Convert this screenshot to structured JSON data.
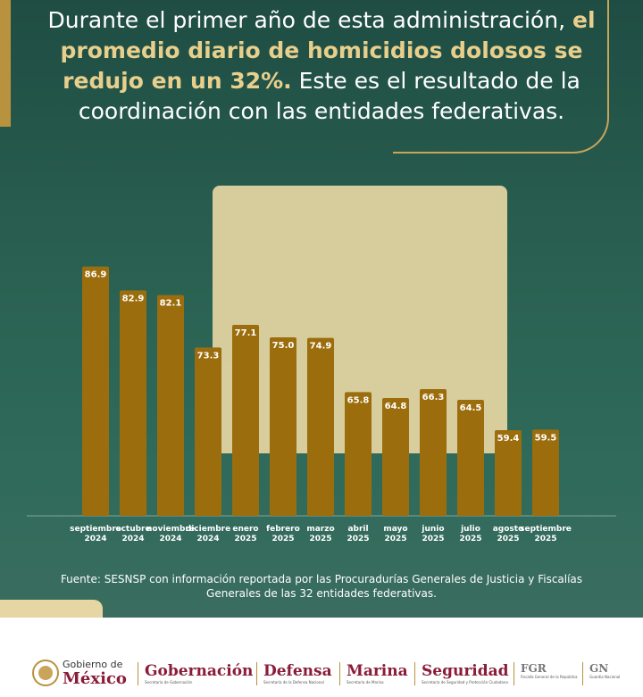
{
  "title": {
    "part1": "Durante el primer año de esta administración,",
    "highlight": "el promedio diario de homicidios dolosos se redujo en un 32%.",
    "part2": "Este es el resultado de la coordinación con las entidades federativas."
  },
  "chart_data": {
    "type": "bar",
    "categories": [
      "septiembre\n2024",
      "octubre\n2024",
      "noviembre\n2024",
      "diciembre\n2024",
      "enero\n2025",
      "febrero\n2025",
      "marzo\n2025",
      "abril\n2025",
      "mayo\n2025",
      "junio\n2025",
      "julio\n2025",
      "agosto\n2025",
      "septiembre\n2025"
    ],
    "values": [
      86.9,
      82.9,
      82.1,
      73.3,
      77.1,
      75.0,
      74.9,
      65.8,
      64.8,
      66.3,
      64.5,
      59.4,
      59.5
    ],
    "value_labels": [
      "86.9",
      "82.9",
      "82.1",
      "73.3",
      "77.1",
      "75.0",
      "74.9",
      "65.8",
      "64.8",
      "66.3",
      "64.5",
      "59.4",
      "59.5"
    ],
    "color": "#9c6d0c",
    "ylim": [
      45,
      90
    ]
  },
  "source": "Fuente: SESNSP con información reportada por las Procuradurías Generales de Justicia y Fiscalías Generales de las 32 entidades federativas.",
  "footer": {
    "gobierno": "Gobierno de",
    "mexico": "México",
    "agencies": [
      {
        "name": "Gobernación",
        "subtitle": "Secretaría de Gobernación"
      },
      {
        "name": "Defensa",
        "subtitle": "Secretaría de la Defensa Nacional"
      },
      {
        "name": "Marina",
        "subtitle": "Secretaría de Marina"
      },
      {
        "name": "Seguridad",
        "subtitle": "Secretaría de Seguridad y Protección Ciudadana"
      },
      {
        "name": "FGR",
        "subtitle": "Fiscalía General de la República"
      },
      {
        "name": "GN",
        "subtitle": "Guardia Nacional"
      }
    ]
  }
}
